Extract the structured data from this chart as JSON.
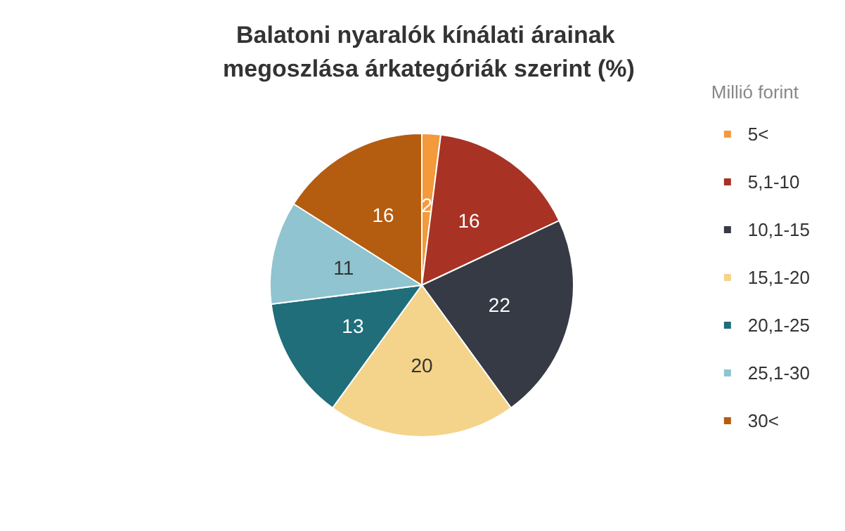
{
  "chart_data": {
    "type": "pie",
    "title": "Balatoni nyaralók kínálati árainak megoszlása árkategóriák szerint (%)",
    "legend_title": "Millió forint",
    "categories": [
      "5<",
      "5,1-10",
      "10,1-15",
      "15,1-20",
      "20,1-25",
      "25,1-30",
      "30<"
    ],
    "values": [
      2,
      16,
      22,
      20,
      13,
      11,
      16
    ],
    "colors": [
      "#f39a3c",
      "#a83224",
      "#363a45",
      "#f4d38b",
      "#1f6e7a",
      "#8fc4d0",
      "#b45c0f"
    ],
    "data_labels": true,
    "legend": "right"
  }
}
